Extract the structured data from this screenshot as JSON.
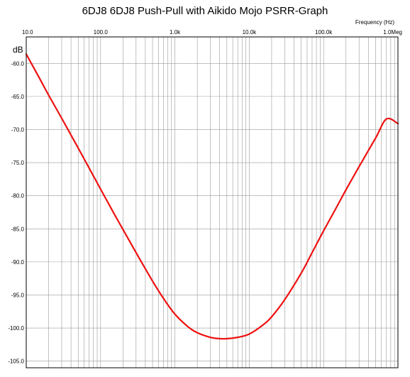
{
  "chart_data": {
    "type": "line",
    "title": "6DJ8 6DJ8 Push-Pull with Aikido Mojo PSRR-Graph",
    "xlabel": "Frequency   (Hz)",
    "ylabel": "dB",
    "xscale": "log",
    "xlim": [
      10,
      1000000
    ],
    "ylim": [
      -106,
      -56
    ],
    "grid": true,
    "x_tick_labels": [
      "10.0",
      "100.0",
      "1.0k",
      "10.0k",
      "100.0k",
      "1.0Meg"
    ],
    "y_tick_labels": [
      "-60.0",
      "-65.0",
      "-70.0",
      "-75.0",
      "-80.0",
      "-85.0",
      "-90.0",
      "-95.0",
      "-100.0",
      "-105.0"
    ],
    "series_color": "#ee1111",
    "series": [
      {
        "x": [
          10,
          15,
          20,
          30,
          50,
          70,
          100,
          150,
          200,
          300,
          500,
          700,
          1000,
          1500,
          2000,
          3000,
          4000,
          5000,
          7000,
          10000,
          15000,
          20000,
          30000,
          50000,
          70000,
          100000,
          150000,
          200000,
          300000,
          500000,
          700000,
          1000000
        ],
        "y": [
          -58.6,
          -62.2,
          -64.8,
          -68.3,
          -72.8,
          -75.8,
          -79.0,
          -82.6,
          -85.1,
          -88.6,
          -92.9,
          -95.5,
          -97.9,
          -99.8,
          -100.7,
          -101.4,
          -101.6,
          -101.6,
          -101.4,
          -100.9,
          -99.6,
          -98.3,
          -95.7,
          -91.7,
          -88.6,
          -85.3,
          -81.7,
          -79.1,
          -75.6,
          -71.3,
          -68.4,
          -69.1
        ]
      }
    ]
  }
}
